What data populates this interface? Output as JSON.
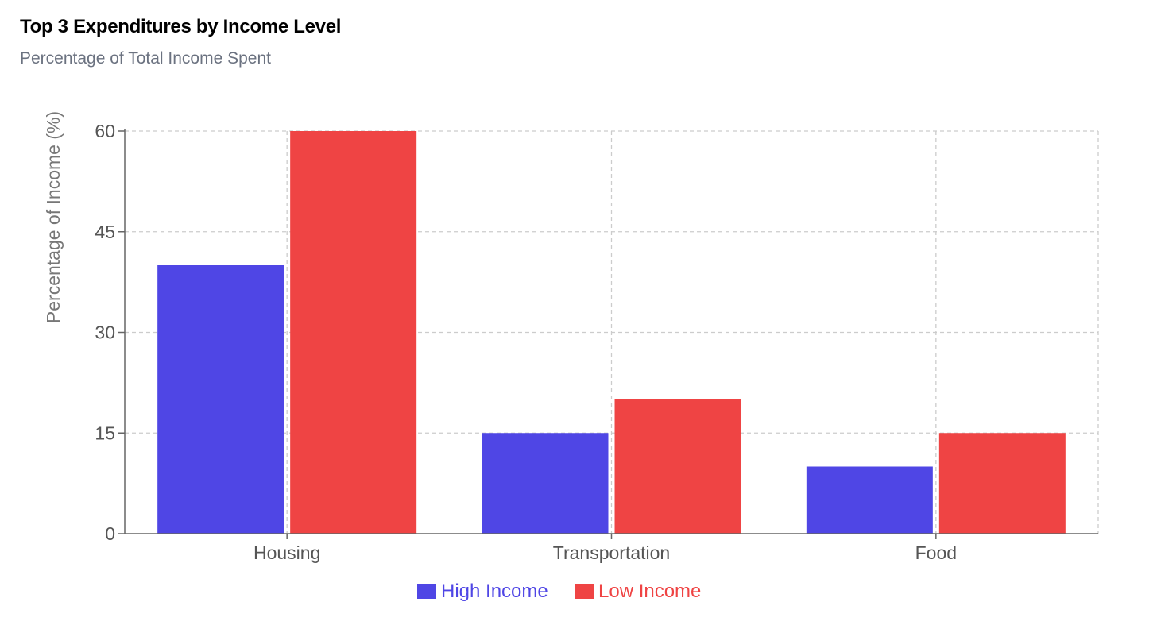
{
  "chart_data": {
    "type": "bar",
    "title": "Top 3 Expenditures by Income Level",
    "subtitle": "Percentage of Total Income Spent",
    "xlabel": "",
    "ylabel": "Percentage of Income (%)",
    "categories": [
      "Housing",
      "Transportation",
      "Food"
    ],
    "series": [
      {
        "name": "High Income",
        "values": [
          40,
          15,
          10
        ],
        "color": "#4f46e5"
      },
      {
        "name": "Low Income",
        "values": [
          60,
          20,
          15
        ],
        "color": "#ef4444"
      }
    ],
    "ylim": [
      0,
      60
    ],
    "yticks": [
      0,
      15,
      30,
      45,
      60
    ],
    "grid": true,
    "legend_position": "bottom-center"
  }
}
